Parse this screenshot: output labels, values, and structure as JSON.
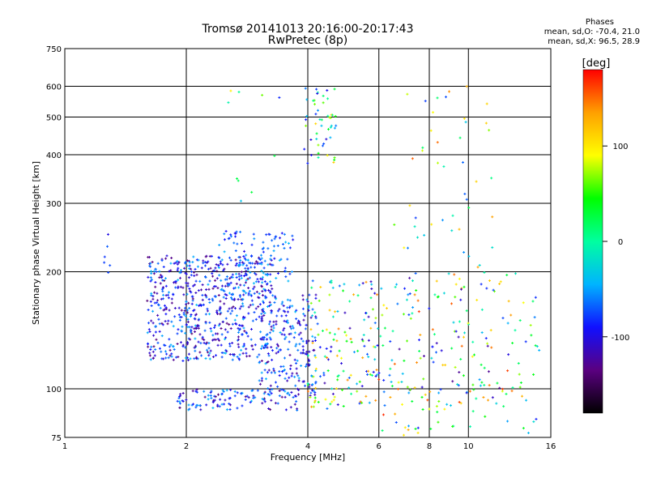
{
  "header": {
    "title": "Tromsø 20141013 20:16:00-20:17:43",
    "subtitle": "RwPretec (8p)"
  },
  "phases_box": {
    "title": "Phases",
    "line_o": "mean, sd,O: -70.4, 21.0",
    "line_x": "mean, sd,X:  96.5, 28.9"
  },
  "chart_data": {
    "type": "scatter",
    "title": "Tromsø 20141013 20:16:00-20:17:43",
    "subtitle": "RwPretec (8p)",
    "xlabel": "Frequency [MHz]",
    "ylabel": "Stationary phase Virtual Height [km]",
    "x_scale": "log",
    "y_scale": "log",
    "xlim": [
      1,
      16
    ],
    "ylim": [
      75,
      750
    ],
    "x_ticks": [
      1,
      2,
      4,
      6,
      8,
      10,
      16
    ],
    "x_tick_labels": [
      "1",
      "2",
      "4",
      "6",
      "8",
      "10",
      "16"
    ],
    "y_ticks": [
      75,
      100,
      200,
      300,
      400,
      500,
      600,
      750
    ],
    "y_tick_labels": [
      "75",
      "100",
      "200",
      "300",
      "400",
      "500",
      "600",
      "750"
    ],
    "grid": true,
    "colorbar": {
      "label": "[deg]",
      "range": [
        -180,
        180
      ],
      "ticks": [
        100,
        0,
        -100
      ],
      "tick_labels": [
        "100",
        "0",
        "-100"
      ],
      "colors": [
        "#000000",
        "#5a0080",
        "#1010ff",
        "#00b4ff",
        "#00ffa0",
        "#00ff00",
        "#ffff00",
        "#ffa000",
        "#ff0000"
      ]
    },
    "clusters": [
      {
        "x": [
          1.6,
          3.3
        ],
        "y": [
          118,
          220
        ],
        "n": 650,
        "phase": [
          -140,
          -40
        ]
      },
      {
        "x": [
          2.4,
          3.7
        ],
        "y": [
          170,
          255
        ],
        "n": 120,
        "phase": [
          -100,
          -40
        ]
      },
      {
        "x": [
          3.0,
          4.2
        ],
        "y": [
          95,
          175
        ],
        "n": 220,
        "phase": [
          -130,
          -40
        ]
      },
      {
        "x": [
          1.9,
          3.8
        ],
        "y": [
          88,
          100
        ],
        "n": 110,
        "phase": [
          -140,
          -40
        ]
      },
      {
        "x": [
          3.9,
          4.7
        ],
        "y": [
          380,
          600
        ],
        "n": 50,
        "phase": [
          -110,
          120
        ]
      },
      {
        "x": [
          4.0,
          6.0
        ],
        "y": [
          88,
          190
        ],
        "n": 150,
        "phase": [
          -120,
          150
        ]
      },
      {
        "x": [
          6.0,
          15.0
        ],
        "y": [
          76,
          200
        ],
        "n": 220,
        "phase": [
          -130,
          170
        ]
      },
      {
        "x": [
          6.5,
          11.5
        ],
        "y": [
          200,
          660
        ],
        "n": 45,
        "phase": [
          -80,
          160
        ]
      },
      {
        "x": [
          1.25,
          1.3
        ],
        "y": [
          190,
          250
        ],
        "n": 6,
        "phase": [
          -100,
          -50
        ]
      },
      {
        "x": [
          2.3,
          3.5
        ],
        "y": [
          300,
          610
        ],
        "n": 10,
        "phase": [
          -120,
          120
        ]
      }
    ]
  }
}
